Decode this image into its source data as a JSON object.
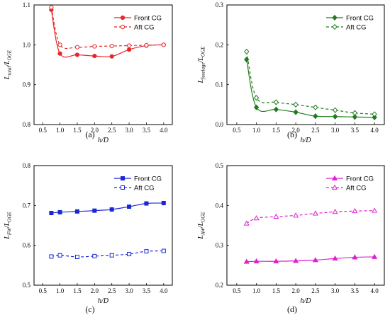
{
  "chart_data": [
    {
      "panel_label": "(a)",
      "type": "line",
      "xlabel": "h/D",
      "ylabel": "L_total/L_OGE",
      "xlim": [
        0.25,
        4.25
      ],
      "ylim": [
        0.8,
        1.1
      ],
      "xticks": [
        0.5,
        1.0,
        1.5,
        2.0,
        2.5,
        3.0,
        3.5,
        4.0
      ],
      "yticks": [
        0.8,
        0.9,
        1.0,
        1.1
      ],
      "ytick_format": 1,
      "legend": "top-right",
      "series": [
        {
          "name": "Front CG",
          "color": "#e8262a",
          "style": "solid",
          "marker": "circle",
          "filled": true,
          "x": [
            0.75,
            1.0,
            1.5,
            2.0,
            2.5,
            3.0,
            3.5,
            4.0
          ],
          "y": [
            1.088,
            0.978,
            0.975,
            0.972,
            0.971,
            0.988,
            0.998,
            1.0
          ]
        },
        {
          "name": "Aft CG",
          "color": "#e8262a",
          "style": "dashed",
          "marker": "circle",
          "filled": false,
          "x": [
            0.75,
            1.0,
            1.5,
            2.0,
            2.5,
            3.0,
            3.5,
            4.0
          ],
          "y": [
            1.094,
            1.0,
            0.994,
            0.996,
            0.997,
            0.998,
            0.999,
            1.0
          ]
        }
      ]
    },
    {
      "panel_label": "(b)",
      "type": "line",
      "xlabel": "h/D",
      "ylabel": "L_fuselage/L_OGE",
      "xlim": [
        0.25,
        4.25
      ],
      "ylim": [
        0.0,
        0.3
      ],
      "xticks": [
        0.5,
        1.0,
        1.5,
        2.0,
        2.5,
        3.0,
        3.5,
        4.0
      ],
      "yticks": [
        0.0,
        0.1,
        0.2,
        0.3
      ],
      "ytick_format": 1,
      "legend": "top-right",
      "series": [
        {
          "name": "Front CG",
          "color": "#1e7d1e",
          "style": "solid",
          "marker": "diamond",
          "filled": true,
          "x": [
            0.75,
            1.0,
            1.5,
            2.0,
            2.5,
            3.0,
            3.5,
            4.0
          ],
          "y": [
            0.163,
            0.043,
            0.038,
            0.031,
            0.021,
            0.02,
            0.019,
            0.018
          ]
        },
        {
          "name": "Aft CG",
          "color": "#1e7d1e",
          "style": "dashed",
          "marker": "diamond",
          "filled": false,
          "x": [
            0.75,
            1.0,
            1.5,
            2.0,
            2.5,
            3.0,
            3.5,
            4.0
          ],
          "y": [
            0.183,
            0.067,
            0.056,
            0.05,
            0.043,
            0.036,
            0.029,
            0.026
          ]
        }
      ]
    },
    {
      "panel_label": "(c)",
      "type": "line",
      "xlabel": "h/D",
      "ylabel": "L_FW/L_OGE",
      "xlim": [
        0.25,
        4.25
      ],
      "ylim": [
        0.5,
        0.8
      ],
      "xticks": [
        0.5,
        1.0,
        1.5,
        2.0,
        2.5,
        3.0,
        3.5,
        4.0
      ],
      "yticks": [
        0.5,
        0.6,
        0.7,
        0.8
      ],
      "ytick_format": 1,
      "legend": "top-right",
      "series": [
        {
          "name": "Front CG",
          "color": "#1a27d6",
          "style": "solid",
          "marker": "square",
          "filled": true,
          "x": [
            0.75,
            1.0,
            1.5,
            2.0,
            2.5,
            3.0,
            3.5,
            4.0
          ],
          "y": [
            0.681,
            0.683,
            0.685,
            0.687,
            0.69,
            0.697,
            0.705,
            0.706
          ]
        },
        {
          "name": "Aft CG",
          "color": "#1a27d6",
          "style": "dashed",
          "marker": "square",
          "filled": false,
          "x": [
            0.75,
            1.0,
            1.5,
            2.0,
            2.5,
            3.0,
            3.5,
            4.0
          ],
          "y": [
            0.572,
            0.575,
            0.571,
            0.573,
            0.575,
            0.578,
            0.585,
            0.586
          ]
        }
      ]
    },
    {
      "panel_label": "(d)",
      "type": "line",
      "xlabel": "h/D",
      "ylabel": "L_AW/L_OGE",
      "xlim": [
        0.25,
        4.25
      ],
      "ylim": [
        0.2,
        0.5
      ],
      "xticks": [
        0.5,
        1.0,
        1.5,
        2.0,
        2.5,
        3.0,
        3.5,
        4.0
      ],
      "yticks": [
        0.2,
        0.3,
        0.4,
        0.5
      ],
      "ytick_format": 1,
      "legend": "top-right",
      "series": [
        {
          "name": "Front CG",
          "color": "#e020d0",
          "style": "solid",
          "marker": "triangle",
          "filled": true,
          "x": [
            0.75,
            1.0,
            1.5,
            2.0,
            2.5,
            3.0,
            3.5,
            4.0
          ],
          "y": [
            0.259,
            0.26,
            0.26,
            0.261,
            0.263,
            0.267,
            0.27,
            0.271
          ]
        },
        {
          "name": "Aft CG",
          "color": "#e020d0",
          "style": "dashed",
          "marker": "triangle",
          "filled": false,
          "x": [
            0.75,
            1.0,
            1.5,
            2.0,
            2.5,
            3.0,
            3.5,
            4.0
          ],
          "y": [
            0.355,
            0.368,
            0.372,
            0.375,
            0.38,
            0.384,
            0.386,
            0.387
          ]
        }
      ]
    }
  ]
}
